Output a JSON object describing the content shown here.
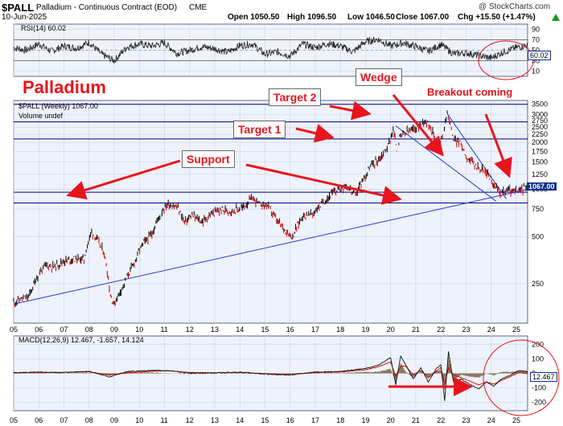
{
  "header": {
    "ticker": "$PALL",
    "name": "Palladium - Continuous Contract (EOD)",
    "exchange": "CME",
    "date": "10-Jun-2025",
    "open": "Open 1050.50",
    "high": "High 1096.50",
    "low": "Low 1046.50",
    "close": "Close 1067.00",
    "chg": "Chg +15.50 (+1.47%)",
    "watermark": "@ StockCharts.com",
    "up_icon": "triangle-up-icon"
  },
  "colors": {
    "panel_bg": "#eef2fa",
    "grid": "#c9d3e6",
    "price_up": "#000000",
    "price_down": "#cc0000",
    "annotation": "#e8141c",
    "hline": "#000080",
    "trendline": "#1f3fd6",
    "macd_hist": "#8a7a5a",
    "close_tag": "#0a2a8a"
  },
  "chart_data": [
    {
      "type": "line",
      "title": "RSI(14) 60.02",
      "ylim": [
        0,
        100
      ],
      "ticks": [
        {
          "v": 90,
          "label": "90"
        },
        {
          "v": 70,
          "label": "70"
        },
        {
          "v": 50,
          "label": "50"
        },
        {
          "v": 30,
          "label": "30"
        },
        {
          "v": 10,
          "label": "10"
        }
      ],
      "ref_lines": [
        70,
        30
      ],
      "current": "60.02",
      "x": [
        2005.0,
        2005.5,
        2006.0,
        2006.5,
        2007.0,
        2007.5,
        2008.0,
        2008.5,
        2009.0,
        2009.5,
        2010.0,
        2010.5,
        2011.0,
        2011.5,
        2012.0,
        2012.5,
        2013.0,
        2013.5,
        2014.0,
        2014.5,
        2015.0,
        2015.5,
        2016.0,
        2016.5,
        2017.0,
        2017.5,
        2018.0,
        2018.5,
        2019.0,
        2019.5,
        2020.0,
        2020.5,
        2021.0,
        2021.5,
        2022.0,
        2022.5,
        2023.0,
        2023.5,
        2024.0,
        2024.5,
        2025.0,
        2025.45
      ],
      "values": [
        55,
        50,
        62,
        48,
        58,
        54,
        65,
        42,
        30,
        56,
        62,
        58,
        64,
        44,
        50,
        57,
        53,
        46,
        59,
        62,
        42,
        47,
        39,
        62,
        55,
        63,
        58,
        47,
        66,
        71,
        58,
        64,
        57,
        48,
        61,
        43,
        45,
        40,
        35,
        47,
        55,
        60
      ]
    },
    {
      "type": "line",
      "title": "$PALL (Weekly) 1067.00",
      "subtitle": "Volume undef",
      "scale": "log",
      "ylim": [
        140,
        3700
      ],
      "y_ticks": [
        250,
        500,
        750,
        1000,
        1250,
        1500,
        1750,
        2000,
        2250,
        2500,
        2750,
        3000,
        3500
      ],
      "x_ticks": [
        "05",
        "06",
        "07",
        "08",
        "09",
        "10",
        "11",
        "12",
        "13",
        "14",
        "15",
        "16",
        "17",
        "18",
        "19",
        "20",
        "21",
        "22",
        "23",
        "24",
        "25"
      ],
      "close_label": "1067.00",
      "x": [
        2005.0,
        2005.3,
        2005.6,
        2006.0,
        2006.3,
        2006.6,
        2007.0,
        2007.4,
        2007.8,
        2008.1,
        2008.35,
        2008.6,
        2008.85,
        2009.0,
        2009.4,
        2009.8,
        2010.1,
        2010.5,
        2010.9,
        2011.15,
        2011.5,
        2011.8,
        2012.1,
        2012.5,
        2012.9,
        2013.3,
        2013.7,
        2014.1,
        2014.5,
        2014.8,
        2015.1,
        2015.5,
        2015.9,
        2016.1,
        2016.5,
        2016.9,
        2017.2,
        2017.6,
        2017.9,
        2018.2,
        2018.6,
        2018.9,
        2019.2,
        2019.6,
        2019.9,
        2020.1,
        2020.25,
        2020.4,
        2020.7,
        2020.9,
        2021.2,
        2021.35,
        2021.6,
        2021.9,
        2022.1,
        2022.25,
        2022.5,
        2022.8,
        2023.0,
        2023.3,
        2023.6,
        2023.9,
        2024.1,
        2024.4,
        2024.7,
        2024.9,
        2025.1,
        2025.3,
        2025.45
      ],
      "values": [
        190,
        200,
        205,
        290,
        330,
        320,
        350,
        360,
        360,
        540,
        470,
        390,
        210,
        185,
        250,
        340,
        440,
        520,
        730,
        810,
        770,
        620,
        680,
        620,
        700,
        740,
        730,
        760,
        880,
        800,
        790,
        620,
        530,
        500,
        680,
        700,
        790,
        920,
        1000,
        1060,
        920,
        1150,
        1400,
        1600,
        1900,
        2400,
        1800,
        2200,
        2350,
        2400,
        2600,
        2800,
        2500,
        1800,
        2300,
        3100,
        2100,
        1950,
        1650,
        1450,
        1350,
        1250,
        1050,
        950,
        1000,
        960,
        980,
        1020,
        1067
      ]
    },
    {
      "type": "line",
      "title": "MACD(12,26,9) 12.467, -1.657, 14.124",
      "ylim": [
        -260,
        260
      ],
      "ticks": [
        {
          "v": 200,
          "label": "200"
        },
        {
          "v": 100,
          "label": "100"
        },
        {
          "v": 0,
          "label": "0"
        },
        {
          "v": -100,
          "label": "-100"
        },
        {
          "v": -200,
          "label": "-200"
        }
      ],
      "current": "12.467",
      "x": [
        2005.0,
        2006.0,
        2007.0,
        2008.0,
        2008.8,
        2009.5,
        2010.5,
        2011.2,
        2012.0,
        2013.0,
        2014.0,
        2015.0,
        2016.0,
        2017.0,
        2018.0,
        2019.0,
        2019.5,
        2020.0,
        2020.2,
        2020.4,
        2020.6,
        2020.9,
        2021.2,
        2021.5,
        2021.8,
        2022.0,
        2022.15,
        2022.3,
        2022.5,
        2022.8,
        2023.1,
        2023.5,
        2023.8,
        2024.1,
        2024.4,
        2024.8,
        2025.1,
        2025.45
      ],
      "series": [
        {
          "values": [
            5,
            8,
            6,
            15,
            -25,
            12,
            20,
            18,
            2,
            3,
            8,
            -5,
            -12,
            10,
            12,
            35,
            55,
            110,
            -80,
            120,
            60,
            -40,
            40,
            -60,
            30,
            60,
            -190,
            150,
            -60,
            -40,
            -70,
            -110,
            -60,
            -90,
            -40,
            -10,
            20,
            12
          ]
        },
        {
          "values": [
            3,
            6,
            7,
            10,
            -10,
            2,
            15,
            18,
            6,
            4,
            6,
            -2,
            -8,
            5,
            10,
            25,
            45,
            80,
            -20,
            50,
            50,
            -10,
            20,
            -30,
            10,
            40,
            -80,
            40,
            -10,
            -30,
            -50,
            -80,
            -60,
            -75,
            -50,
            -20,
            5,
            -2
          ]
        }
      ]
    }
  ],
  "annotations": {
    "title": "Palladium",
    "target1": "Target 1",
    "target2": "Target 2",
    "support": "Support",
    "wedge": "Wedge",
    "breakout": "Breakout coming"
  }
}
